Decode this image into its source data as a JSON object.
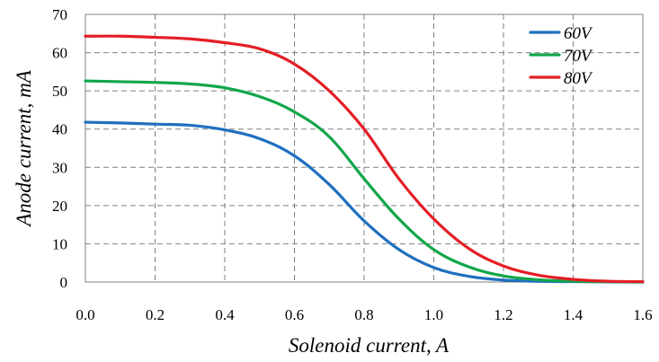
{
  "chart_data": {
    "type": "line",
    "title": "",
    "xlabel": "Solenoid current, A",
    "ylabel": "Anode current, mA",
    "xlim": [
      0,
      1.6
    ],
    "ylim": [
      0,
      70
    ],
    "xticks": [
      "0.0",
      "0.2",
      "0.4",
      "0.6",
      "0.8",
      "1.0",
      "1.2",
      "1.4",
      "1.6"
    ],
    "yticks": [
      "0",
      "10",
      "20",
      "30",
      "40",
      "50",
      "60",
      "70"
    ],
    "grid": true,
    "legend_position": "top-right",
    "series": [
      {
        "name": "60V",
        "color": "#1f6fbf",
        "x": [
          0,
          0.1,
          0.2,
          0.3,
          0.4,
          0.5,
          0.6,
          0.7,
          0.8,
          0.9,
          1.0,
          1.1,
          1.2,
          1.3,
          1.4,
          1.5,
          1.6
        ],
        "y": [
          41.8,
          41.6,
          41.3,
          41.0,
          39.8,
          37.5,
          33.0,
          25.5,
          16.0,
          8.5,
          3.8,
          1.5,
          0.5,
          0.2,
          0.1,
          0.05,
          0.0
        ]
      },
      {
        "name": "70V",
        "color": "#12a64a",
        "x": [
          0,
          0.1,
          0.2,
          0.3,
          0.4,
          0.5,
          0.6,
          0.7,
          0.8,
          0.9,
          1.0,
          1.1,
          1.2,
          1.3,
          1.4,
          1.5,
          1.6
        ],
        "y": [
          52.6,
          52.4,
          52.2,
          51.8,
          50.8,
          48.5,
          44.5,
          38.0,
          27.0,
          16.5,
          8.5,
          4.0,
          1.6,
          0.6,
          0.2,
          0.1,
          0.0
        ]
      },
      {
        "name": "80V",
        "color": "#e41e26",
        "x": [
          0,
          0.1,
          0.2,
          0.3,
          0.4,
          0.5,
          0.6,
          0.7,
          0.8,
          0.9,
          1.0,
          1.1,
          1.2,
          1.3,
          1.4,
          1.5,
          1.6
        ],
        "y": [
          64.3,
          64.3,
          64.0,
          63.6,
          62.6,
          61.0,
          57.0,
          50.0,
          40.0,
          27.0,
          16.5,
          8.8,
          4.2,
          1.8,
          0.7,
          0.2,
          0.1
        ]
      }
    ]
  }
}
